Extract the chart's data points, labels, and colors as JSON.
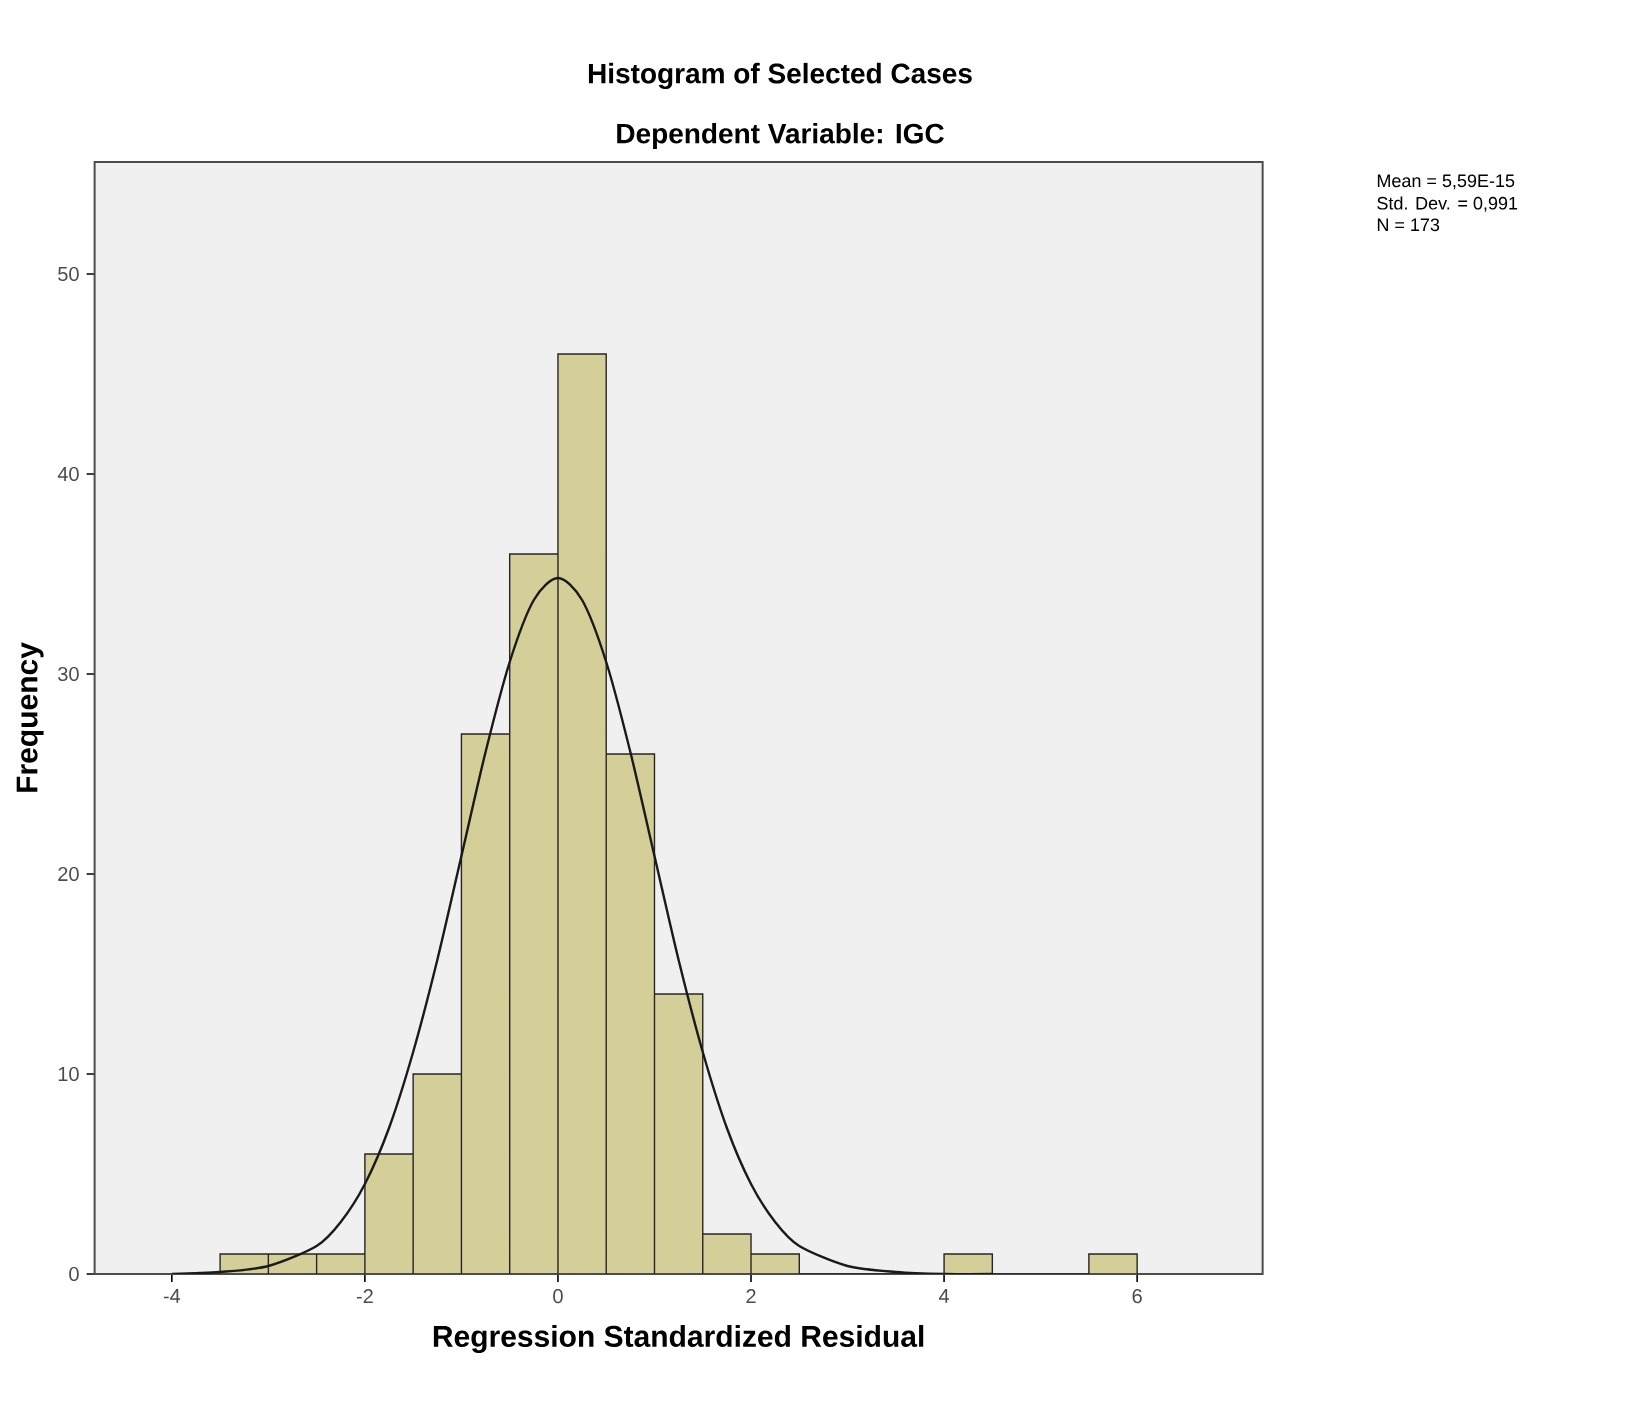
{
  "chart_data": {
    "type": "histogram",
    "title": "Histogram of Selected Cases",
    "subtitle": "Dependent Variable: IGC",
    "xlabel": "Regression Standardized Residual",
    "ylabel": "Frequency",
    "bins": [
      -3.5,
      -3.0,
      -2.5,
      -2.0,
      -1.5,
      -1.0,
      -0.5,
      0.0,
      0.5,
      1.0,
      1.5,
      2.0,
      2.5,
      3.0,
      3.5,
      4.0,
      4.5,
      5.0,
      5.5,
      6.0
    ],
    "values": [
      1,
      1,
      1,
      6,
      10,
      27,
      36,
      46,
      26,
      14,
      2,
      1,
      0,
      0,
      0,
      1,
      0,
      0,
      1
    ],
    "color": "#d4cf98",
    "series": [
      {
        "type": "line",
        "color": "#1a1a1a",
        "x": [
          -4.0,
          -3.5,
          -3.0,
          -2.5,
          -2.25,
          -2.0,
          -1.75,
          -1.5,
          -1.25,
          -1.0,
          -0.75,
          -0.5,
          -0.25,
          0.0,
          0.25,
          0.5,
          0.75,
          1.0,
          1.25,
          1.5,
          1.75,
          2.0,
          2.25,
          2.5,
          3.0,
          3.5,
          4.0,
          4.5
        ],
        "values": [
          0.0,
          0.1,
          0.4,
          1.4,
          2.6,
          4.5,
          7.3,
          11.1,
          15.7,
          20.9,
          26.1,
          30.6,
          33.7,
          34.8,
          33.7,
          30.6,
          26.1,
          20.9,
          15.7,
          11.1,
          7.3,
          4.5,
          2.6,
          1.4,
          0.4,
          0.1,
          0.0,
          0.0
        ]
      }
    ],
    "xlim": [
      -4.8,
      7.3
    ],
    "ylim": [
      0,
      55.6
    ],
    "xticks": [
      -4,
      -2,
      0,
      2,
      4,
      6
    ],
    "yticks": [
      0,
      10,
      20,
      30,
      40,
      50
    ],
    "grid": false,
    "annotations": [
      "Mean = 5,59E-15",
      "Std. Dev. = 0,991",
      "N = 173"
    ]
  }
}
